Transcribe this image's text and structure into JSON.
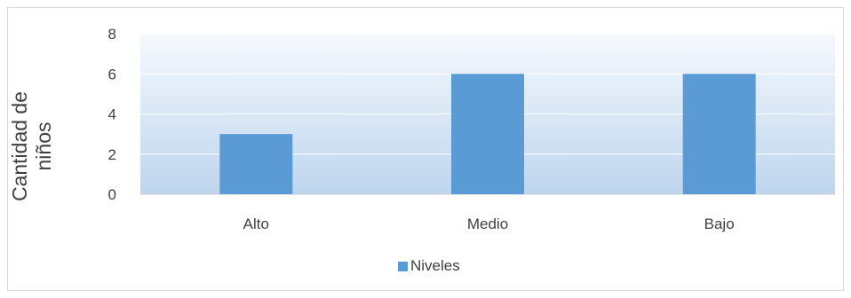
{
  "chart_data": {
    "type": "bar",
    "categories": [
      "Alto",
      "Medio",
      "Bajo"
    ],
    "series": [
      {
        "name": "Niveles",
        "values": [
          3,
          6,
          6
        ],
        "color": "#5b9bd5"
      }
    ],
    "title": "",
    "xlabel": "",
    "ylabel_lines": [
      "Cantidad de",
      "niños"
    ],
    "ylim": [
      0,
      8
    ],
    "yticks": [
      0,
      2,
      4,
      6,
      8
    ],
    "grid": true,
    "legend_position": "bottom",
    "plot_background": "gradient light blue"
  }
}
